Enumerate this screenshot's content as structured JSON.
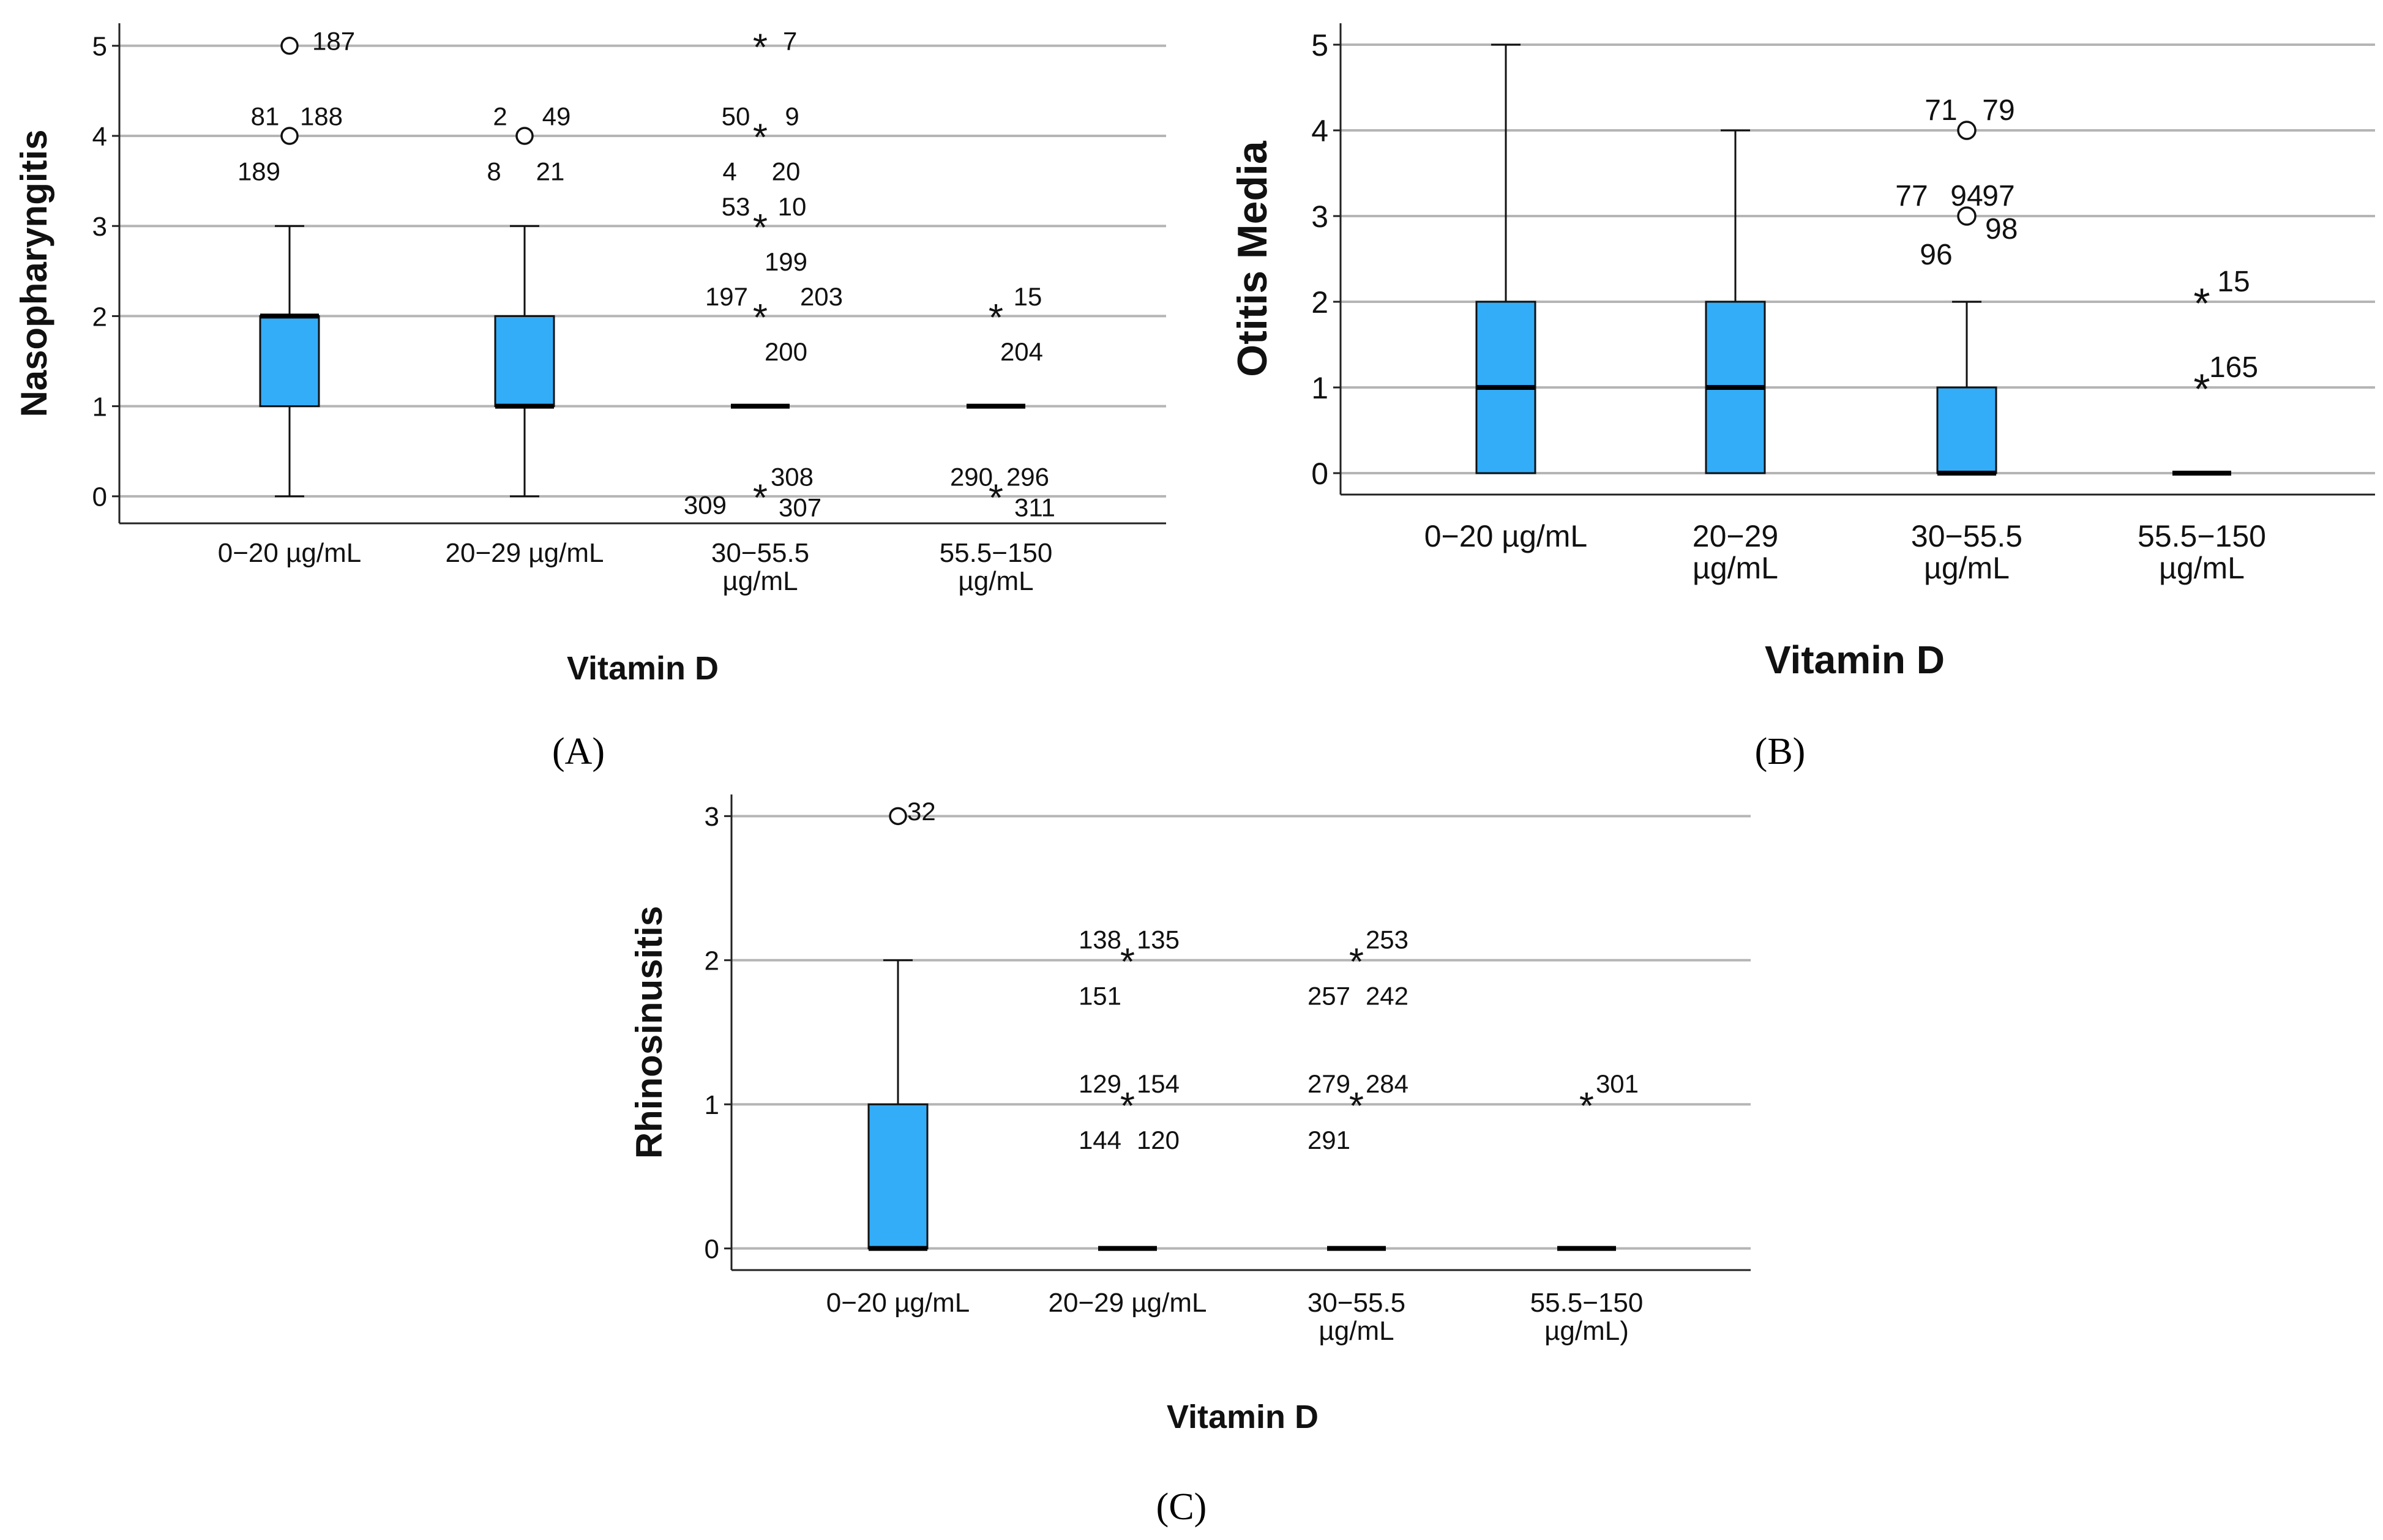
{
  "chart_data": [
    {
      "type": "box",
      "panel": "A",
      "title": "",
      "xlabel": "Vitamin D",
      "ylabel": "Nasopharyngitis",
      "ylim": [
        -0.3,
        5.25
      ],
      "yticks": [
        0,
        1,
        2,
        3,
        4,
        5
      ],
      "grid": true,
      "box_color": "#33adf8",
      "categories": [
        "0−20 µg/mL",
        "20−29 µg/mL",
        "30−55.5\nµg/mL",
        "55.5−150\nµg/mL"
      ],
      "boxes": [
        {
          "whisker_low": 0,
          "q1": 1,
          "median": 2,
          "q3": 2,
          "whisker_high": 3
        },
        {
          "whisker_low": 0,
          "q1": 1,
          "median": 1,
          "q3": 2,
          "whisker_high": 3
        },
        {
          "whisker_low": 1,
          "q1": 1,
          "median": 1,
          "q3": 1,
          "whisker_high": 1
        },
        {
          "whisker_low": 1,
          "q1": 1,
          "median": 1,
          "q3": 1,
          "whisker_high": 1
        }
      ],
      "outliers": [
        {
          "cat": 0,
          "y": 5,
          "marker": "circle"
        },
        {
          "cat": 0,
          "y": 4,
          "marker": "circle"
        },
        {
          "cat": 1,
          "y": 4,
          "marker": "circle"
        },
        {
          "cat": 2,
          "y": 5,
          "marker": "star"
        },
        {
          "cat": 2,
          "y": 4,
          "marker": "star"
        },
        {
          "cat": 2,
          "y": 3,
          "marker": "star"
        },
        {
          "cat": 2,
          "y": 2,
          "marker": "star"
        },
        {
          "cat": 2,
          "y": 0,
          "marker": "star"
        },
        {
          "cat": 3,
          "y": 2,
          "marker": "star"
        },
        {
          "cat": 3,
          "y": 0,
          "marker": "star"
        }
      ],
      "outlier_labels": [
        {
          "cat": 0,
          "y": 5,
          "pos": "right",
          "text": "187"
        },
        {
          "cat": 0,
          "y": 4,
          "pos": "upper-left",
          "text": "81"
        },
        {
          "cat": 0,
          "y": 4,
          "pos": "upper-right",
          "text": "188"
        },
        {
          "cat": 0,
          "y": 4,
          "pos": "lower-left",
          "text": "189"
        },
        {
          "cat": 1,
          "y": 4,
          "pos": "upper-left",
          "text": "2"
        },
        {
          "cat": 1,
          "y": 4,
          "pos": "upper-right",
          "text": "49"
        },
        {
          "cat": 1,
          "y": 4,
          "pos": "lower-left",
          "text": "8"
        },
        {
          "cat": 1,
          "y": 4,
          "pos": "lower-right",
          "text": "21"
        },
        {
          "cat": 2,
          "y": 5,
          "pos": "right",
          "text": "7"
        },
        {
          "cat": 2,
          "y": 4,
          "pos": "upper-left",
          "text": "50"
        },
        {
          "cat": 2,
          "y": 4,
          "pos": "upper-right",
          "text": "9"
        },
        {
          "cat": 2,
          "y": 4,
          "pos": "lower-left",
          "text": "4"
        },
        {
          "cat": 2,
          "y": 4,
          "pos": "lower-right",
          "text": "20"
        },
        {
          "cat": 2,
          "y": 3,
          "pos": "upper-left",
          "text": "53"
        },
        {
          "cat": 2,
          "y": 3,
          "pos": "upper-right",
          "text": "10"
        },
        {
          "cat": 2,
          "y": 3,
          "pos": "lower-right",
          "text": "199"
        },
        {
          "cat": 2,
          "y": 2,
          "pos": "far-upper-left",
          "text": "197"
        },
        {
          "cat": 2,
          "y": 2,
          "pos": "far-upper-right",
          "text": "203"
        },
        {
          "cat": 2,
          "y": 2,
          "pos": "lower-right",
          "text": "200"
        },
        {
          "cat": 2,
          "y": 0,
          "pos": "upper-right",
          "text": "308"
        },
        {
          "cat": 2,
          "y": 0,
          "pos": "left",
          "text": "309"
        },
        {
          "cat": 2,
          "y": 0,
          "pos": "right-low",
          "text": "307"
        },
        {
          "cat": 3,
          "y": 2,
          "pos": "upper-right",
          "text": "15"
        },
        {
          "cat": 3,
          "y": 2,
          "pos": "lower-right",
          "text": "204"
        },
        {
          "cat": 3,
          "y": 0,
          "pos": "upper-left",
          "text": "290"
        },
        {
          "cat": 3,
          "y": 0,
          "pos": "upper-right",
          "text": "296"
        },
        {
          "cat": 3,
          "y": 0,
          "pos": "right-low",
          "text": "311"
        }
      ]
    },
    {
      "type": "box",
      "panel": "B",
      "title": "",
      "xlabel": "Vitamin D",
      "ylabel": "Otitis Media",
      "ylim": [
        -0.25,
        5.25
      ],
      "yticks": [
        0,
        1,
        2,
        3,
        4,
        5
      ],
      "grid": true,
      "box_color": "#33adf8",
      "categories": [
        "0−20 µg/mL",
        "20−29\nµg/mL",
        "30−55.5\nµg/mL",
        "55.5−150\nµg/mL"
      ],
      "boxes": [
        {
          "whisker_low": 0,
          "q1": 0,
          "median": 1,
          "q3": 2,
          "whisker_high": 5
        },
        {
          "whisker_low": 0,
          "q1": 0,
          "median": 1,
          "q3": 2,
          "whisker_high": 4
        },
        {
          "whisker_low": 0,
          "q1": 0,
          "median": 0,
          "q3": 1,
          "whisker_high": 2
        },
        {
          "whisker_low": 0,
          "q1": 0,
          "median": 0,
          "q3": 0,
          "whisker_high": 0
        }
      ],
      "outliers": [
        {
          "cat": 2,
          "y": 4,
          "marker": "circle"
        },
        {
          "cat": 2,
          "y": 3,
          "marker": "circle"
        },
        {
          "cat": 3,
          "y": 2,
          "marker": "star"
        },
        {
          "cat": 3,
          "y": 1,
          "marker": "star"
        }
      ],
      "outlier_labels": [
        {
          "cat": 2,
          "y": 4,
          "pos": "upper-left",
          "text": "71"
        },
        {
          "cat": 2,
          "y": 4,
          "pos": "upper-right",
          "text": "79"
        },
        {
          "cat": 2,
          "y": 3,
          "pos": "far-upper-left",
          "text": "77"
        },
        {
          "cat": 2,
          "y": 3,
          "pos": "upper-center",
          "text": "94"
        },
        {
          "cat": 2,
          "y": 3,
          "pos": "upper-right",
          "text": "97"
        },
        {
          "cat": 2,
          "y": 3,
          "pos": "lower-left",
          "text": "96"
        },
        {
          "cat": 2,
          "y": 3,
          "pos": "right-low",
          "text": "98"
        },
        {
          "cat": 3,
          "y": 2,
          "pos": "upper-right",
          "text": "15"
        },
        {
          "cat": 3,
          "y": 1,
          "pos": "upper-right",
          "text": "165"
        }
      ]
    },
    {
      "type": "box",
      "panel": "C",
      "title": "",
      "xlabel": "Vitamin D",
      "ylabel": "Rhinosinusitis",
      "ylim": [
        -0.15,
        3.15
      ],
      "yticks": [
        0,
        1,
        2,
        3
      ],
      "grid": true,
      "box_color": "#33adf8",
      "categories": [
        "0−20 µg/mL",
        "20−29 µg/mL",
        "30−55.5\nµg/mL",
        "55.5−150\nµg/mL)"
      ],
      "boxes": [
        {
          "whisker_low": 0,
          "q1": 0,
          "median": 0,
          "q3": 1,
          "whisker_high": 2
        },
        {
          "whisker_low": 0,
          "q1": 0,
          "median": 0,
          "q3": 0,
          "whisker_high": 0
        },
        {
          "whisker_low": 0,
          "q1": 0,
          "median": 0,
          "q3": 0,
          "whisker_high": 0
        },
        {
          "whisker_low": 0,
          "q1": 0,
          "median": 0,
          "q3": 0,
          "whisker_high": 0
        }
      ],
      "outliers": [
        {
          "cat": 0,
          "y": 3,
          "marker": "circle"
        },
        {
          "cat": 1,
          "y": 2,
          "marker": "star"
        },
        {
          "cat": 1,
          "y": 1,
          "marker": "star"
        },
        {
          "cat": 2,
          "y": 2,
          "marker": "star"
        },
        {
          "cat": 2,
          "y": 1,
          "marker": "star"
        },
        {
          "cat": 3,
          "y": 1,
          "marker": "star"
        }
      ],
      "outlier_labels": [
        {
          "cat": 0,
          "y": 3,
          "pos": "right",
          "text": "32"
        },
        {
          "cat": 1,
          "y": 2,
          "pos": "upper-left",
          "text": "138"
        },
        {
          "cat": 1,
          "y": 2,
          "pos": "upper-right",
          "text": "135"
        },
        {
          "cat": 1,
          "y": 2,
          "pos": "lower-left",
          "text": "151"
        },
        {
          "cat": 1,
          "y": 1,
          "pos": "upper-left",
          "text": "129"
        },
        {
          "cat": 1,
          "y": 1,
          "pos": "upper-right",
          "text": "154"
        },
        {
          "cat": 1,
          "y": 1,
          "pos": "lower-left",
          "text": "144"
        },
        {
          "cat": 1,
          "y": 1,
          "pos": "lower-right",
          "text": "120"
        },
        {
          "cat": 2,
          "y": 2,
          "pos": "upper-right",
          "text": "253"
        },
        {
          "cat": 2,
          "y": 2,
          "pos": "lower-left",
          "text": "257"
        },
        {
          "cat": 2,
          "y": 2,
          "pos": "lower-right",
          "text": "242"
        },
        {
          "cat": 2,
          "y": 1,
          "pos": "upper-left",
          "text": "279"
        },
        {
          "cat": 2,
          "y": 1,
          "pos": "upper-right",
          "text": "284"
        },
        {
          "cat": 2,
          "y": 1,
          "pos": "lower-left",
          "text": "291"
        },
        {
          "cat": 3,
          "y": 1,
          "pos": "upper-right",
          "text": "301"
        }
      ]
    }
  ],
  "panel_labels": [
    "(A)",
    "(B)",
    "(C)"
  ]
}
